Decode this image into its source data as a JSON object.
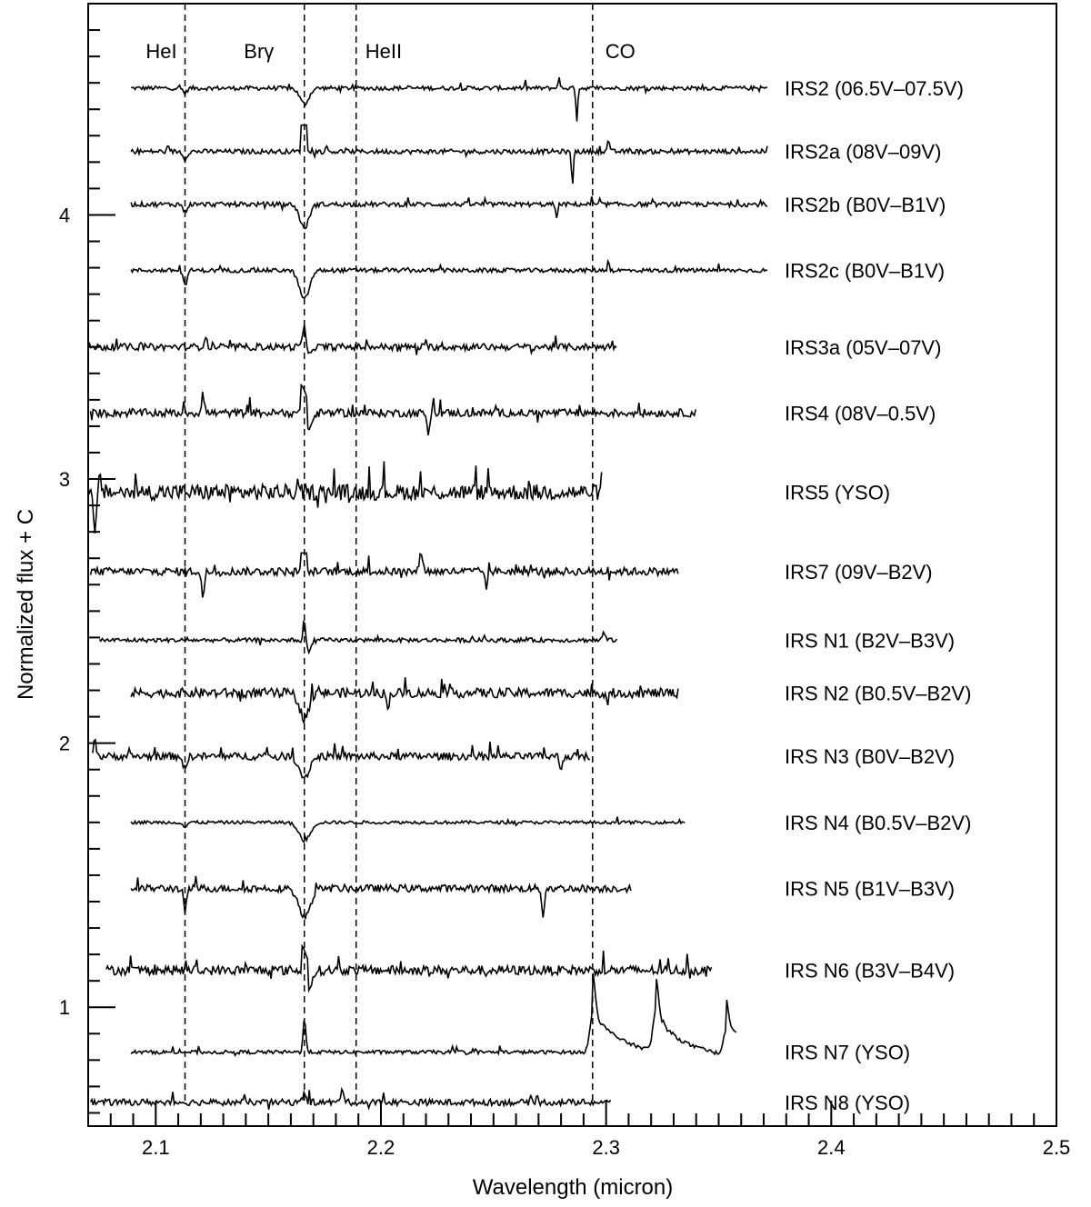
{
  "chart_data": {
    "type": "line",
    "xlabel": "Wavelength (micron)",
    "ylabel": "Normalized flux + C",
    "xlim": [
      2.07,
      2.5
    ],
    "ylim": [
      0.55,
      4.8
    ],
    "x_ticks": [
      2.1,
      2.2,
      2.3,
      2.4,
      2.5
    ],
    "x_tick_labels": [
      "2.1",
      "2.2",
      "2.3",
      "2.4",
      "2.5"
    ],
    "y_ticks": [
      1,
      2,
      3,
      4
    ],
    "y_tick_labels": [
      "1",
      "2",
      "3",
      "4"
    ],
    "reference_lines": [
      {
        "label": "HeI",
        "x": 2.113
      },
      {
        "label": "Brγ",
        "x": 2.166
      },
      {
        "label": "HeII",
        "x": 2.189
      },
      {
        "label": "CO",
        "x": 2.294
      }
    ],
    "series": [
      {
        "name": "IRS2 (06.5V–07.5V)",
        "baseline": 4.48,
        "x_start": 2.089,
        "x_end": 2.372,
        "noise": 0.008,
        "features": [
          {
            "x": 2.166,
            "depth": -0.06,
            "width": 0.002
          },
          {
            "x": 2.113,
            "depth": -0.02,
            "width": 0.0008
          },
          {
            "x": 2.287,
            "depth": -0.12,
            "width": 0.0004
          },
          {
            "x": 2.279,
            "depth": 0.04,
            "width": 0.0004
          }
        ]
      },
      {
        "name": "IRS2a (08V–09V)",
        "baseline": 4.24,
        "x_start": 2.089,
        "x_end": 2.372,
        "noise": 0.009,
        "features": [
          {
            "x": 2.166,
            "depth": 0.1,
            "width": 0.0015,
            "flat": true
          },
          {
            "x": 2.113,
            "depth": -0.03,
            "width": 0.0008
          },
          {
            "x": 2.285,
            "depth": -0.13,
            "width": 0.0004
          },
          {
            "x": 2.301,
            "depth": 0.05,
            "width": 0.0004
          }
        ]
      },
      {
        "name": "IRS2b (B0V–B1V)",
        "baseline": 4.04,
        "x_start": 2.089,
        "x_end": 2.372,
        "noise": 0.009,
        "features": [
          {
            "x": 2.166,
            "depth": -0.09,
            "width": 0.002
          },
          {
            "x": 2.113,
            "depth": -0.03,
            "width": 0.0008
          },
          {
            "x": 2.278,
            "depth": -0.06,
            "width": 0.0004
          }
        ]
      },
      {
        "name": "IRS2c (B0V–B1V)",
        "baseline": 3.79,
        "x_start": 2.089,
        "x_end": 2.372,
        "noise": 0.008,
        "features": [
          {
            "x": 2.166,
            "depth": -0.11,
            "width": 0.0022
          },
          {
            "x": 2.113,
            "depth": -0.06,
            "width": 0.0008
          },
          {
            "x": 2.301,
            "depth": 0.04,
            "width": 0.0004
          }
        ]
      },
      {
        "name": "IRS3a (05V–07V)",
        "baseline": 3.5,
        "x_start": 2.07,
        "x_end": 2.305,
        "noise": 0.013,
        "features": [
          {
            "x": 2.166,
            "depth": 0.11,
            "width": 0.0008
          },
          {
            "x": 2.167,
            "depth": -0.05,
            "width": 0.0012
          },
          {
            "x": 2.122,
            "depth": 0.04,
            "width": 0.0006
          }
        ]
      },
      {
        "name": "IRS4 (08V–0.5V)",
        "baseline": 3.25,
        "x_start": 2.071,
        "x_end": 2.34,
        "noise": 0.015,
        "features": [
          {
            "x": 2.166,
            "depth": 0.11,
            "width": 0.0015,
            "flat": true
          },
          {
            "x": 2.168,
            "depth": -0.06,
            "width": 0.0015
          },
          {
            "x": 2.121,
            "depth": 0.08,
            "width": 0.0006
          },
          {
            "x": 2.221,
            "depth": -0.08,
            "width": 0.0006
          }
        ]
      },
      {
        "name": "IRS5 (YSO)",
        "baseline": 2.95,
        "x_start": 2.07,
        "x_end": 2.298,
        "noise": 0.03,
        "features": [
          {
            "x": 2.073,
            "depth": -0.15,
            "width": 0.0008
          },
          {
            "x": 2.075,
            "depth": 0.05,
            "width": 0.0008
          }
        ]
      },
      {
        "name": "IRS7 (09V–B2V)",
        "baseline": 2.65,
        "x_start": 2.071,
        "x_end": 2.332,
        "noise": 0.015,
        "features": [
          {
            "x": 2.166,
            "depth": 0.07,
            "width": 0.0015,
            "flat": true
          },
          {
            "x": 2.121,
            "depth": -0.1,
            "width": 0.0006
          },
          {
            "x": 2.247,
            "depth": -0.06,
            "width": 0.0006
          },
          {
            "x": 2.218,
            "depth": 0.07,
            "width": 0.0008
          }
        ]
      },
      {
        "name": "IRS N1 (B2V–B3V)",
        "baseline": 2.39,
        "x_start": 2.075,
        "x_end": 2.305,
        "noise": 0.008,
        "features": [
          {
            "x": 2.166,
            "depth": 0.12,
            "width": 0.0007
          },
          {
            "x": 2.167,
            "depth": -0.05,
            "width": 0.0018
          },
          {
            "x": 2.299,
            "depth": 0.03,
            "width": 0.0006
          }
        ]
      },
      {
        "name": "IRS N2 (B0.5V–B2V)",
        "baseline": 2.19,
        "x_start": 2.089,
        "x_end": 2.332,
        "noise": 0.018,
        "features": [
          {
            "x": 2.166,
            "depth": -0.09,
            "width": 0.0022
          },
          {
            "x": 2.203,
            "depth": -0.06,
            "width": 0.0006
          },
          {
            "x": 2.301,
            "depth": -0.05,
            "width": 0.0006
          }
        ]
      },
      {
        "name": "IRS N3 (B0V–B2V)",
        "baseline": 1.95,
        "x_start": 2.072,
        "x_end": 2.293,
        "noise": 0.014,
        "features": [
          {
            "x": 2.166,
            "depth": -0.08,
            "width": 0.0022
          },
          {
            "x": 2.073,
            "depth": 0.07,
            "width": 0.0006
          },
          {
            "x": 2.113,
            "depth": -0.05,
            "width": 0.0008
          },
          {
            "x": 2.28,
            "depth": -0.05,
            "width": 0.0006
          }
        ]
      },
      {
        "name": "IRS N4 (B0.5V–B2V)",
        "baseline": 1.7,
        "x_start": 2.089,
        "x_end": 2.335,
        "noise": 0.006,
        "features": [
          {
            "x": 2.166,
            "depth": -0.07,
            "width": 0.0025
          },
          {
            "x": 2.113,
            "depth": -0.02,
            "width": 0.0008
          }
        ]
      },
      {
        "name": "IRS N5 (B1V–B3V)",
        "baseline": 1.45,
        "x_start": 2.089,
        "x_end": 2.311,
        "noise": 0.014,
        "features": [
          {
            "x": 2.166,
            "depth": -0.11,
            "width": 0.0025
          },
          {
            "x": 2.113,
            "depth": -0.1,
            "width": 0.0006
          },
          {
            "x": 2.272,
            "depth": -0.1,
            "width": 0.0006
          }
        ]
      },
      {
        "name": "IRS N6 (B3V–B4V)",
        "baseline": 1.14,
        "x_start": 2.078,
        "x_end": 2.347,
        "noise": 0.018,
        "features": [
          {
            "x": 2.166,
            "depth": 0.1,
            "width": 0.0015,
            "flat": true
          },
          {
            "x": 2.168,
            "depth": -0.06,
            "width": 0.0015
          }
        ]
      },
      {
        "name": "IRS N7 (YSO)",
        "baseline": 0.83,
        "x_start": 2.089,
        "x_end": 2.358,
        "noise": 0.007,
        "features": [
          {
            "x": 2.166,
            "depth": 0.13,
            "width": 0.0006
          },
          {
            "x": 2.294,
            "depth": 0.15,
            "width": 0.0012
          },
          {
            "x": 2.322,
            "depth": 0.15,
            "width": 0.0012
          },
          {
            "x": 2.353,
            "depth": 0.09,
            "width": 0.001
          }
        ]
      },
      {
        "name": "IRS N8 (YSO)",
        "baseline": 0.64,
        "x_start": 2.071,
        "x_end": 2.302,
        "noise": 0.012,
        "features": [
          {
            "x": 2.166,
            "depth": 0.04,
            "width": 0.0007
          },
          {
            "x": 2.183,
            "depth": 0.05,
            "width": 0.0007
          }
        ]
      }
    ]
  }
}
